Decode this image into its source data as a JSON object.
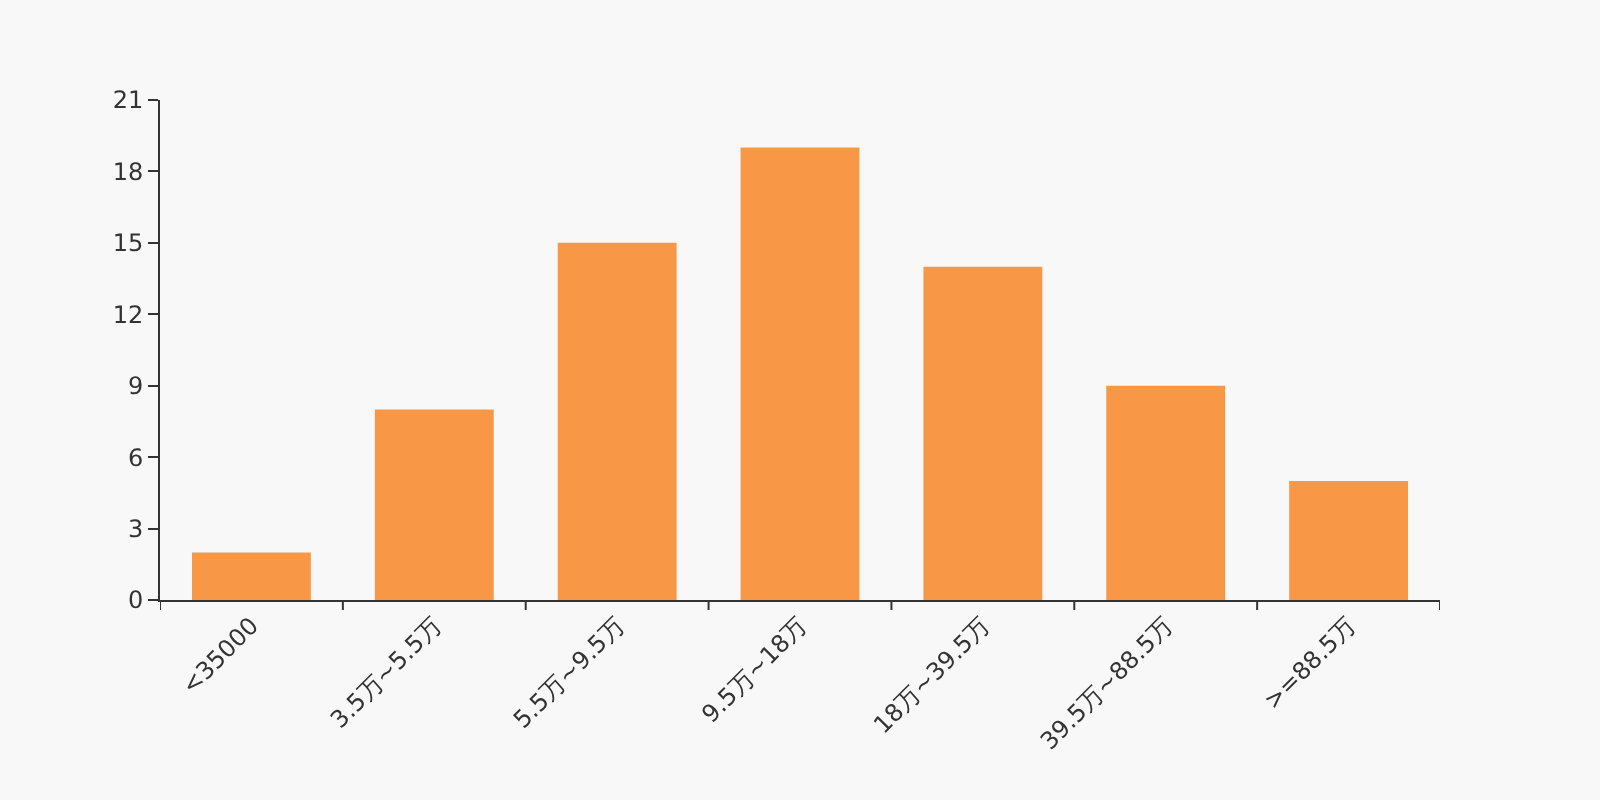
{
  "chart_data": {
    "type": "bar",
    "categories": [
      "<35000",
      "3.5万~5.5万",
      "5.5万~9.5万",
      "9.5万~18万",
      "18万~39.5万",
      "39.5万~88.5万",
      ">=88.5万"
    ],
    "values": [
      2,
      8,
      15,
      19,
      14,
      9,
      5
    ],
    "color": "#f89847",
    "ylim": [
      0,
      21
    ],
    "yticks": [
      0,
      3,
      6,
      9,
      12,
      15,
      18,
      21
    ],
    "grid": false
  }
}
